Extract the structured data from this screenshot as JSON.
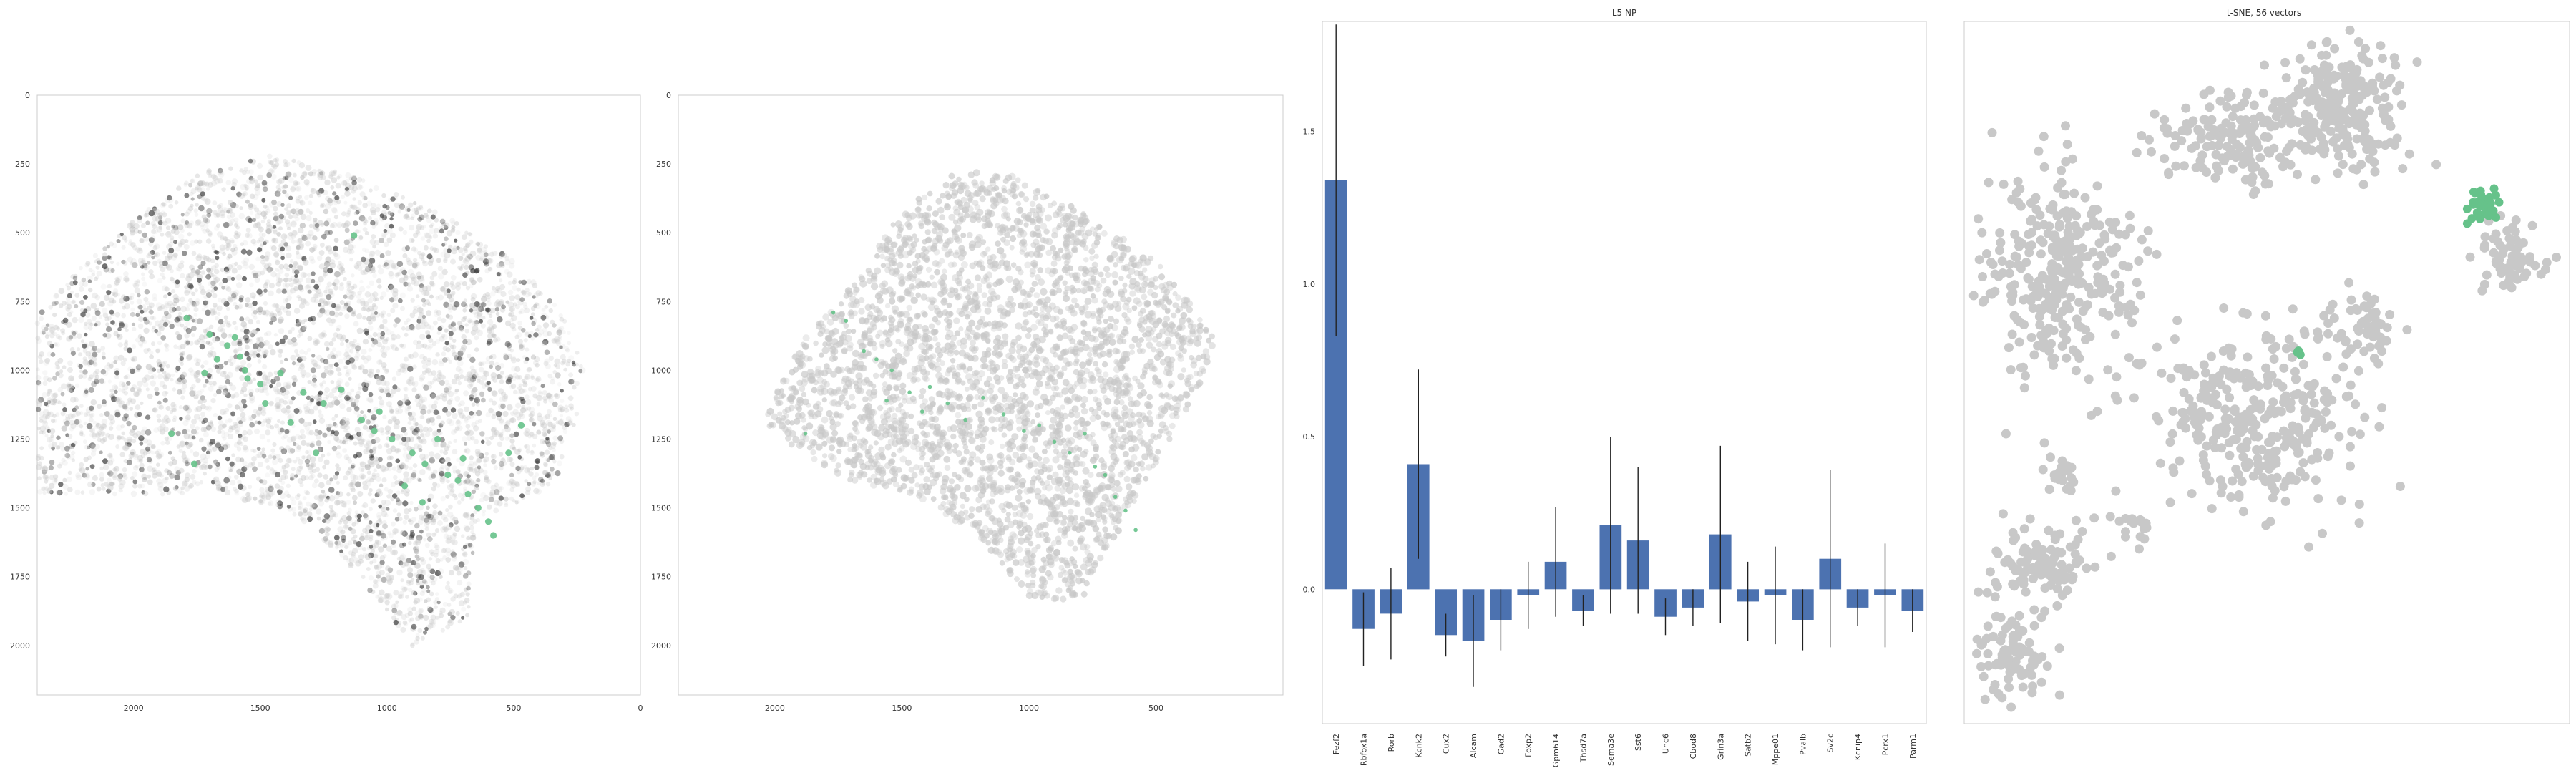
{
  "colors": {
    "highlight": "#66c28a",
    "background_cells": "#c8c8c8",
    "dark_cells": "#333333",
    "bar": "#4c72b0",
    "error_bar": "#222222",
    "frame": "#cccccc"
  },
  "chart_data": [
    {
      "type": "scatter",
      "title": "",
      "xlabel": "",
      "ylabel": "",
      "x_ticks": [
        2000,
        1500,
        1000,
        500,
        0
      ],
      "y_ticks": [
        0,
        250,
        500,
        750,
        1000,
        1250,
        1500,
        1750,
        2000
      ],
      "xlim": [
        2380,
        0
      ],
      "ylim": [
        2180,
        0
      ],
      "grid": false,
      "series": [
        {
          "role": "highlighted-cells",
          "color": "#66c28a",
          "points": [
            [
              1790,
              810
            ],
            [
              1700,
              870
            ],
            [
              1630,
              910
            ],
            [
              1580,
              950
            ],
            [
              1560,
              1000
            ],
            [
              1500,
              1050
            ],
            [
              1420,
              1010
            ],
            [
              1330,
              1080
            ],
            [
              1250,
              1120
            ],
            [
              1180,
              1070
            ],
            [
              1100,
              1180
            ],
            [
              1050,
              1220
            ],
            [
              980,
              1250
            ],
            [
              900,
              1300
            ],
            [
              850,
              1340
            ],
            [
              800,
              1250
            ],
            [
              760,
              1380
            ],
            [
              720,
              1400
            ],
            [
              680,
              1450
            ],
            [
              640,
              1500
            ],
            [
              600,
              1550
            ],
            [
              580,
              1600
            ],
            [
              520,
              1300
            ],
            [
              470,
              1200
            ],
            [
              1850,
              1230
            ],
            [
              1760,
              1340
            ],
            [
              1670,
              960
            ],
            [
              1480,
              1120
            ],
            [
              1380,
              1190
            ],
            [
              1130,
              510
            ],
            [
              1030,
              1150
            ],
            [
              1600,
              880
            ],
            [
              1720,
              1010
            ],
            [
              1550,
              1030
            ],
            [
              1280,
              1300
            ],
            [
              930,
              1420
            ],
            [
              860,
              1480
            ],
            [
              700,
              1320
            ]
          ]
        }
      ]
    },
    {
      "type": "scatter",
      "title": "",
      "xlabel": "",
      "ylabel": "",
      "x_ticks": [
        2000,
        1500,
        1000,
        500
      ],
      "y_ticks": [
        0,
        250,
        500,
        750,
        1000,
        1250,
        1500,
        1750,
        2000
      ],
      "xlim": [
        2380,
        0
      ],
      "ylim": [
        2180,
        0
      ],
      "grid": false,
      "series": [
        {
          "role": "highlighted-cells",
          "color": "#66c28a",
          "points": [
            [
              1770,
              790
            ],
            [
              1720,
              820
            ],
            [
              1650,
              930
            ],
            [
              1600,
              960
            ],
            [
              1540,
              1000
            ],
            [
              1470,
              1080
            ],
            [
              1390,
              1060
            ],
            [
              1320,
              1120
            ],
            [
              1250,
              1180
            ],
            [
              1180,
              1100
            ],
            [
              1100,
              1160
            ],
            [
              1020,
              1220
            ],
            [
              960,
              1200
            ],
            [
              900,
              1260
            ],
            [
              840,
              1300
            ],
            [
              780,
              1230
            ],
            [
              740,
              1350
            ],
            [
              700,
              1380
            ],
            [
              660,
              1460
            ],
            [
              620,
              1510
            ],
            [
              580,
              1580
            ],
            [
              1420,
              1150
            ],
            [
              1560,
              1110
            ],
            [
              1880,
              1230
            ]
          ]
        }
      ]
    },
    {
      "type": "bar",
      "title": "L5 NP",
      "xlabel": "",
      "ylabel": "",
      "categories": [
        "Fezf2",
        "Rbfox1a",
        "Rorb",
        "Kcnk2",
        "Cux2",
        "Alcam",
        "Gad2",
        "Foxp2",
        "Gpm614",
        "Thsd7a",
        "Sema3e",
        "Sst6",
        "Unc6",
        "Cbod8",
        "Grin3a",
        "Satb2",
        "Mppe01",
        "Pvalb",
        "Sv2c",
        "Kcnip4",
        "Pcrx1",
        "Parm1"
      ],
      "values": [
        1.34,
        -0.13,
        -0.08,
        0.41,
        -0.15,
        -0.17,
        -0.1,
        -0.02,
        0.09,
        -0.07,
        0.21,
        0.16,
        -0.09,
        -0.06,
        0.18,
        -0.04,
        -0.02,
        -0.1,
        0.1,
        -0.06,
        -0.02,
        -0.07
      ],
      "errors": [
        0.51,
        0.12,
        0.15,
        0.31,
        0.07,
        0.15,
        0.1,
        0.11,
        0.18,
        0.05,
        0.29,
        0.24,
        0.06,
        0.06,
        0.29,
        0.13,
        0.16,
        0.1,
        0.29,
        0.06,
        0.17,
        0.07
      ],
      "y_ticks": [
        0.0,
        0.5,
        1.0,
        1.5
      ],
      "ylim": [
        -0.44,
        1.86
      ],
      "grid": false
    },
    {
      "type": "scatter",
      "title": "t-SNE, 56 vectors",
      "xlabel": "",
      "ylabel": "",
      "xlim": [
        0,
        1
      ],
      "ylim": [
        0,
        1
      ],
      "grid": false,
      "clusters": [
        {
          "role": "background",
          "cx": 0.62,
          "cy": 0.88,
          "rx": 0.1,
          "ry": 0.08,
          "n": 260
        },
        {
          "role": "background",
          "cx": 0.43,
          "cy": 0.83,
          "rx": 0.1,
          "ry": 0.06,
          "n": 150
        },
        {
          "role": "background",
          "cx": 0.15,
          "cy": 0.64,
          "rx": 0.12,
          "ry": 0.14,
          "n": 320
        },
        {
          "role": "background",
          "cx": 0.48,
          "cy": 0.44,
          "rx": 0.16,
          "ry": 0.12,
          "n": 340
        },
        {
          "role": "background",
          "cx": 0.66,
          "cy": 0.56,
          "rx": 0.05,
          "ry": 0.04,
          "n": 50
        },
        {
          "role": "background",
          "cx": 0.9,
          "cy": 0.66,
          "rx": 0.05,
          "ry": 0.05,
          "n": 70
        },
        {
          "role": "background",
          "cx": 0.12,
          "cy": 0.23,
          "rx": 0.08,
          "ry": 0.06,
          "n": 110
        },
        {
          "role": "background",
          "cx": 0.08,
          "cy": 0.1,
          "rx": 0.06,
          "ry": 0.06,
          "n": 90
        },
        {
          "role": "background",
          "cx": 0.16,
          "cy": 0.35,
          "rx": 0.02,
          "ry": 0.02,
          "n": 20
        },
        {
          "role": "background",
          "cx": 0.28,
          "cy": 0.28,
          "rx": 0.02,
          "ry": 0.02,
          "n": 15
        },
        {
          "role": "highlighted",
          "cx": 0.86,
          "cy": 0.74,
          "rx": 0.025,
          "ry": 0.02,
          "n": 45
        },
        {
          "role": "highlighted",
          "cx": 0.55,
          "cy": 0.53,
          "rx": 0.006,
          "ry": 0.004,
          "n": 3
        }
      ]
    }
  ]
}
